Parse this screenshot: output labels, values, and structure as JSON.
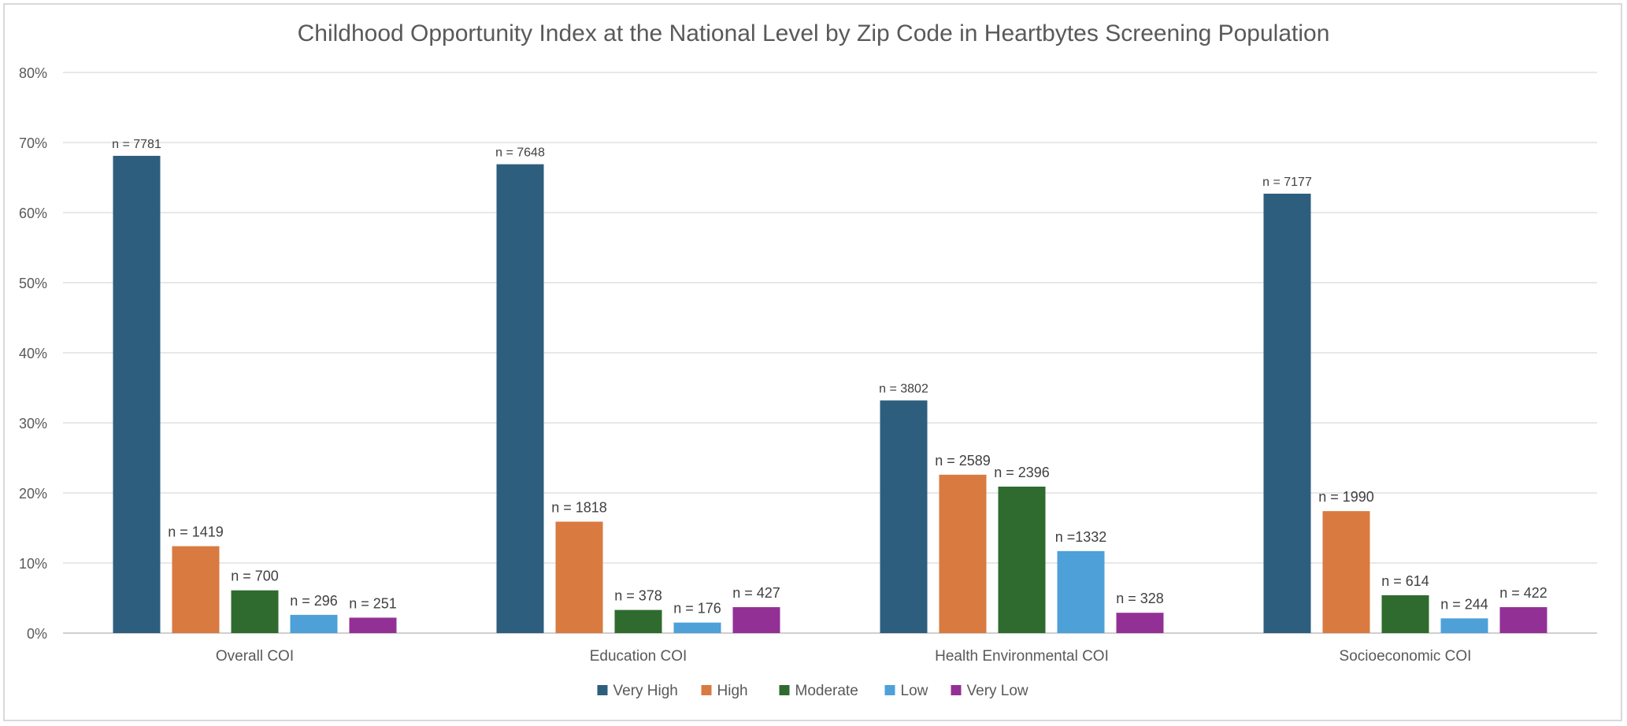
{
  "chart_data": {
    "type": "bar",
    "title": "Childhood Opportunity Index at the National Level by Zip Code in Heartbytes Screening Population",
    "xlabel": "",
    "ylabel": "",
    "ylim": [
      0,
      80
    ],
    "yticks": [
      "0%",
      "10%",
      "20%",
      "30%",
      "40%",
      "50%",
      "60%",
      "70%",
      "80%"
    ],
    "grid": true,
    "legend_position": "bottom",
    "categories": [
      "Overall COI",
      "Education COI",
      "Health Environmental COI",
      "Socioeconomic COI"
    ],
    "series": [
      {
        "name": "Very High",
        "color": "#2e5e7e",
        "values": [
          68.1,
          66.9,
          33.2,
          62.7
        ],
        "labels": [
          "n = 7781",
          "n = 7648",
          "n = 3802",
          "n = 7177"
        ]
      },
      {
        "name": "High",
        "color": "#d97a40",
        "values": [
          12.4,
          15.9,
          22.6,
          17.4
        ],
        "labels": [
          "n = 1419",
          "n  = 1818",
          "n = 2589",
          "n = 1990"
        ]
      },
      {
        "name": "Moderate",
        "color": "#2f6b2f",
        "values": [
          6.1,
          3.3,
          20.9,
          5.4
        ],
        "labels": [
          "n = 700",
          "n = 378",
          "n = 2396",
          "n = 614"
        ]
      },
      {
        "name": "Low",
        "color": "#4ea0d8",
        "values": [
          2.6,
          1.5,
          11.7,
          2.1
        ],
        "labels": [
          "n = 296",
          "n = 176",
          "n =1332",
          "n = 244"
        ]
      },
      {
        "name": "Very Low",
        "color": "#933096",
        "values": [
          2.2,
          3.7,
          2.9,
          3.7
        ],
        "labels": [
          "n = 251",
          "n = 427",
          "n = 328",
          "n = 422"
        ]
      }
    ]
  }
}
